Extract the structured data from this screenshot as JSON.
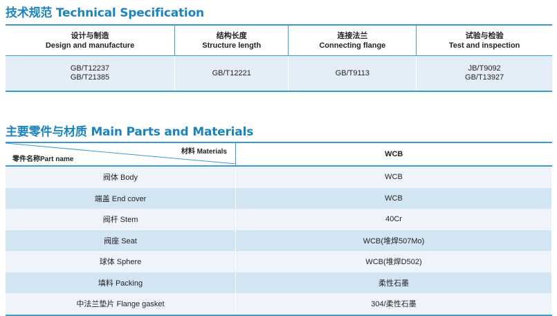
{
  "spec": {
    "title": "技术规范 Technical Specification",
    "headers": [
      {
        "cn": "设计与制造",
        "en": "Design and manufacture"
      },
      {
        "cn": "结构长度",
        "en": "Structure length"
      },
      {
        "cn": "连接法兰",
        "en": "Connecting flange"
      },
      {
        "cn": "试验与检验",
        "en": "Test and inspection"
      }
    ],
    "values": [
      [
        "GB/T12237",
        "GB/T21385"
      ],
      [
        "GB/T12221",
        ""
      ],
      [
        "GB/T9113",
        ""
      ],
      [
        "JB/T9092",
        "GB/T13927"
      ]
    ]
  },
  "parts": {
    "title": "主要零件与材质 Main Parts and Materials",
    "header_materials": "材料 Materials",
    "header_part": "零件名称Part name",
    "header_grade": "WCB",
    "rows": [
      {
        "part": "阀体 Body",
        "material": "WCB"
      },
      {
        "part": "端盖 End cover",
        "material": "WCB"
      },
      {
        "part": "阀杆 Stem",
        "material": "40Cr"
      },
      {
        "part": "阀座 Seat",
        "material": "WCB(堆焊507Mo)"
      },
      {
        "part": "球体 Sphere",
        "material": "WCB(堆焊D502)"
      },
      {
        "part": "填料 Packing",
        "material": "柔性石墨"
      },
      {
        "part": "中法兰垫片 Flange gasket",
        "material": "304/柔性石墨"
      }
    ]
  },
  "colors": {
    "accent": "#1b84bd",
    "row_light": "#eef4fa",
    "row_blue": "#d2e5f3"
  }
}
